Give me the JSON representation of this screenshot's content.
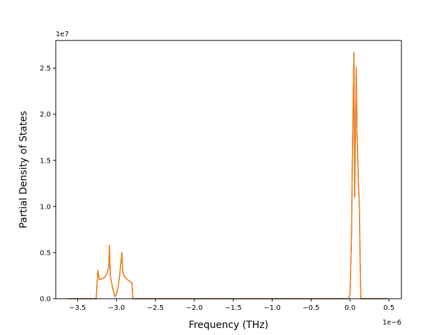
{
  "chart_data": {
    "type": "line",
    "title": "",
    "xlabel": "Frequency (THz)",
    "ylabel": "Partial Density of States",
    "x_offset_label": "1e−6",
    "y_offset_label": "1e7",
    "xlim": [
      -3.78,
      0.66
    ],
    "ylim": [
      0,
      2.8
    ],
    "xticks": [
      -3.5,
      -3.0,
      -2.5,
      -2.0,
      -1.5,
      -1.0,
      -0.5,
      0.0,
      0.5
    ],
    "xtick_labels": [
      "−3.5",
      "−3.0",
      "−2.5",
      "−2.0",
      "−1.5",
      "−1.0",
      "−0.5",
      "0.0",
      "0.5"
    ],
    "yticks": [
      0.0,
      0.5,
      1.0,
      1.5,
      2.0,
      2.5
    ],
    "ytick_labels": [
      "0.0",
      "0.5",
      "1.0",
      "1.5",
      "2.0",
      "2.5"
    ],
    "grid": false,
    "legend": "none",
    "series": [
      {
        "color": "#1f77b4",
        "x": [
          -3.62,
          -3.5,
          -3.4,
          -3.3,
          -3.26,
          -3.24,
          -3.22,
          -3.2,
          -3.15,
          -3.12,
          -3.1,
          -3.09,
          -3.08,
          -3.05,
          -3.02,
          -3.0,
          -2.98,
          -2.96,
          -2.93,
          -2.92,
          -2.9,
          -2.85,
          -2.8,
          -2.79,
          -2.75,
          -2.5,
          -2.0,
          -1.5,
          -1.0,
          -0.5,
          -0.1,
          -0.02,
          0.0,
          0.02,
          0.03,
          0.05,
          0.06,
          0.08,
          0.09,
          0.11,
          0.12,
          0.13,
          0.14,
          0.2,
          0.3,
          0.48
        ],
        "y": [
          0,
          0,
          0,
          0,
          0,
          0.3,
          0.21,
          0.21,
          0.23,
          0.28,
          0.34,
          0.58,
          0.25,
          0.12,
          0.02,
          0.05,
          0.12,
          0.25,
          0.5,
          0.3,
          0.24,
          0.2,
          0.17,
          0,
          0,
          0,
          0,
          0,
          0,
          0,
          0,
          0,
          0.05,
          0.7,
          1.5,
          2.67,
          1.1,
          2.51,
          1.8,
          1.2,
          1.0,
          0.4,
          0,
          0,
          0,
          0
        ]
      },
      {
        "color": "#ff7f0e",
        "x": [
          -3.62,
          -3.5,
          -3.4,
          -3.3,
          -3.26,
          -3.24,
          -3.22,
          -3.2,
          -3.15,
          -3.12,
          -3.1,
          -3.09,
          -3.08,
          -3.05,
          -3.02,
          -3.0,
          -2.98,
          -2.96,
          -2.93,
          -2.92,
          -2.9,
          -2.85,
          -2.8,
          -2.79,
          -2.75,
          -2.5,
          -2.0,
          -1.5,
          -1.0,
          -0.5,
          -0.1,
          -0.02,
          0.0,
          0.02,
          0.03,
          0.05,
          0.06,
          0.08,
          0.09,
          0.11,
          0.12,
          0.13,
          0.14,
          0.2,
          0.3,
          0.48
        ],
        "y": [
          0,
          0,
          0,
          0,
          0,
          0.31,
          0.21,
          0.21,
          0.23,
          0.28,
          0.34,
          0.58,
          0.25,
          0.12,
          0.02,
          0.05,
          0.12,
          0.25,
          0.5,
          0.3,
          0.24,
          0.2,
          0.17,
          0,
          0,
          0,
          0,
          0,
          0,
          0,
          0,
          0,
          0.05,
          0.7,
          1.5,
          2.66,
          1.1,
          2.51,
          1.8,
          1.2,
          1.0,
          0.4,
          0,
          0,
          0,
          0
        ]
      }
    ]
  }
}
